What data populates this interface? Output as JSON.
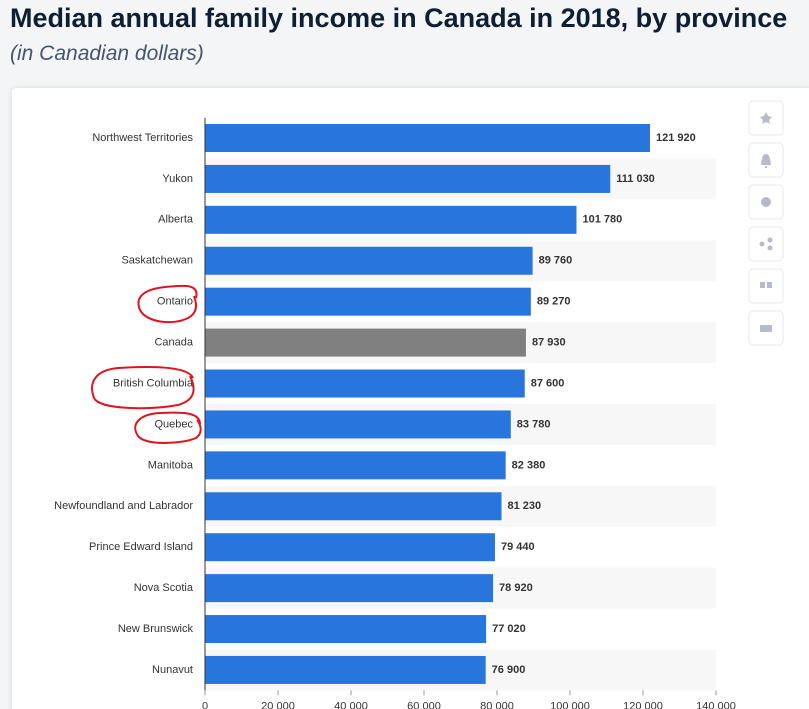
{
  "chart_data": {
    "type": "barh",
    "title": "Median annual family income in Canada in 2018, by province",
    "subtitle": "(in Canadian dollars)",
    "categories": [
      "Northwest Territories",
      "Yukon",
      "Alberta",
      "Saskatchewan",
      "Ontario",
      "Canada",
      "British Columbia",
      "Quebec",
      "Manitoba",
      "Newfoundland and Labrador",
      "Prince Edward Island",
      "Nova Scotia",
      "New Brunswick",
      "Nunavut"
    ],
    "values": [
      121920,
      111030,
      101780,
      89760,
      89270,
      87930,
      87600,
      83780,
      82380,
      81230,
      79440,
      78920,
      77020,
      76900
    ],
    "value_labels": [
      "121 920",
      "111 030",
      "101 780",
      "89 760",
      "89 270",
      "87 930",
      "87 600",
      "83 780",
      "82 380",
      "81 230",
      "79 440",
      "78 920",
      "77 020",
      "76 900"
    ],
    "colors": [
      "#2876dd",
      "#2876dd",
      "#2876dd",
      "#2876dd",
      "#2876dd",
      "#808080",
      "#2876dd",
      "#2876dd",
      "#2876dd",
      "#2876dd",
      "#2876dd",
      "#2876dd",
      "#2876dd",
      "#2876dd"
    ],
    "xlim": [
      0,
      140000
    ],
    "xticks": [
      0,
      {
        "value": 20000,
        "label": "20 000"
      },
      {
        "value": 40000,
        "label": "40 000"
      },
      {
        "value": 60000,
        "label": "60 000"
      },
      {
        "value": 80000,
        "label": "80 000"
      },
      {
        "value": 100000,
        "label": "100 000"
      },
      {
        "value": 120000,
        "label": "120 000"
      },
      {
        "value": 140000,
        "label": "140 000"
      }
    ],
    "grid": false
  }
}
